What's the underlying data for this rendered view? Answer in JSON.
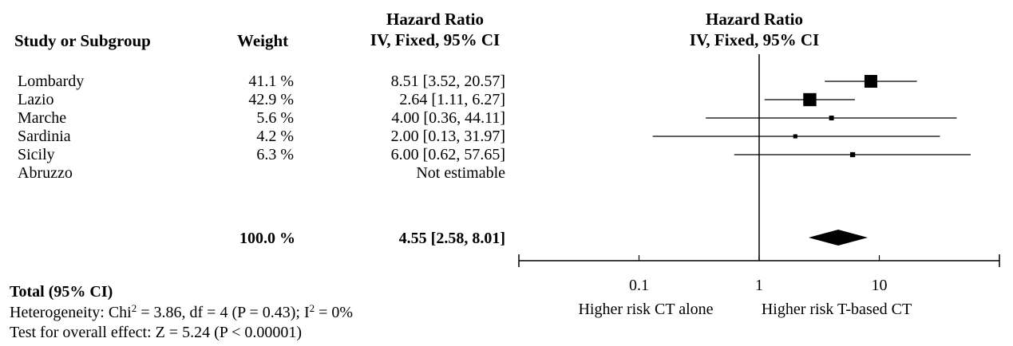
{
  "headers": {
    "study": "Study or Subgroup",
    "weight": "Weight",
    "ci_line1": "Hazard Ratio",
    "ci_line2": "IV, Fixed, 95% CI",
    "plot_line1": "Hazard Ratio",
    "plot_line2": "IV, Fixed, 95% CI"
  },
  "total": {
    "weight": "100.0 %",
    "estimate": "4.55 [2.58, 8.01]",
    "label": "Total (95% CI)",
    "heterogeneity_pre": "Heterogeneity: Chi",
    "heterogeneity_sup1": "2",
    "heterogeneity_mid": " = 3.86, df = 4 (P = 0.43); I",
    "heterogeneity_sup2": "2",
    "heterogeneity_post": " = 0%",
    "overall_effect": "Test for overall effect: Z = 5.24 (P < 0.00001)"
  },
  "chart_data": {
    "type": "forest",
    "scale": "log",
    "xlim": [
      0.01,
      100
    ],
    "ticks": [
      {
        "value": 0.1,
        "label": "0.1"
      },
      {
        "value": 1,
        "label": "1"
      },
      {
        "value": 10,
        "label": "10"
      }
    ],
    "reference_line": 1,
    "favours_left": "Higher risk CT alone",
    "favours_right": "Higher risk T-based CT",
    "studies": [
      {
        "name": "Lombardy",
        "weight": "41.1 %",
        "ci_text": "8.51 [3.52, 20.57]",
        "hr": 8.51,
        "lo": 3.52,
        "hi": 20.57,
        "w": 41.1
      },
      {
        "name": "Lazio",
        "weight": "42.9 %",
        "ci_text": "2.64 [1.11, 6.27]",
        "hr": 2.64,
        "lo": 1.11,
        "hi": 6.27,
        "w": 42.9
      },
      {
        "name": "Marche",
        "weight": "5.6 %",
        "ci_text": "4.00 [0.36, 44.11]",
        "hr": 4.0,
        "lo": 0.36,
        "hi": 44.11,
        "w": 5.6
      },
      {
        "name": "Sardinia",
        "weight": "4.2 %",
        "ci_text": "2.00 [0.13, 31.97]",
        "hr": 2.0,
        "lo": 0.13,
        "hi": 31.97,
        "w": 4.2
      },
      {
        "name": "Sicily",
        "weight": "6.3 %",
        "ci_text": "6.00 [0.62, 57.65]",
        "hr": 6.0,
        "lo": 0.62,
        "hi": 57.65,
        "w": 6.3
      },
      {
        "name": "Abruzzo",
        "weight": "",
        "ci_text": "Not estimable",
        "hr": null,
        "lo": null,
        "hi": null,
        "w": null
      }
    ],
    "pooled": {
      "hr": 4.55,
      "lo": 2.58,
      "hi": 8.01
    }
  }
}
